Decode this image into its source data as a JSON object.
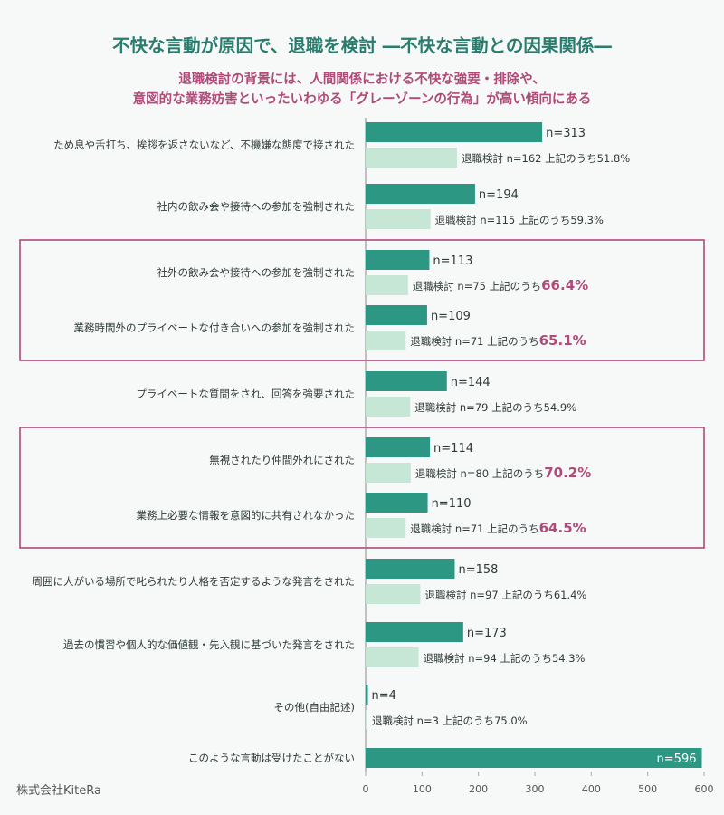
{
  "title": "不快な言動が原因で、退職を検討 ―不快な言動との因果関係―",
  "subtitle_lines": [
    "退職検討の背景には、人間関係における不快な強要・排除や、",
    "意図的な業務妨害といったいわゆる「グレーゾーンの行為」が高い傾向にある"
  ],
  "company": "株式会社KiteRa",
  "colors": {
    "primary": "#2c9783",
    "secondary": "#c6e6d6",
    "highlight": "#b04a78",
    "title": "#2a7d6e"
  },
  "chart_data": {
    "type": "bar",
    "orientation": "horizontal",
    "xlim": [
      0,
      600
    ],
    "xticks": [
      0,
      100,
      200,
      300,
      400,
      500,
      600
    ],
    "categories": [
      {
        "label": "ため息や舌打ち、挨拶を返さないなど、不機嫌な態度で接された",
        "n": 313,
        "n_label": "n=313",
        "retire": 162,
        "retire_label": "退職検討 n=162 上記のうち",
        "pct": "51.8%",
        "highlight": false
      },
      {
        "label": "社内の飲み会や接待への参加を強制された",
        "n": 194,
        "n_label": "n=194",
        "retire": 115,
        "retire_label": "退職検討 n=115 上記のうち",
        "pct": "59.3%",
        "highlight": false
      },
      {
        "label": "社外の飲み会や接待への参加を強制された",
        "n": 113,
        "n_label": "n=113",
        "retire": 75,
        "retire_label": "退職検討 n=75 上記のうち",
        "pct": "66.4%",
        "highlight": true
      },
      {
        "label": "業務時間外のプライベートな付き合いへの参加を強制された",
        "n": 109,
        "n_label": "n=109",
        "retire": 71,
        "retire_label": "退職検討 n=71 上記のうち",
        "pct": "65.1%",
        "highlight": true
      },
      {
        "label": "プライベートな質問をされ、回答を強要された",
        "n": 144,
        "n_label": "n=144",
        "retire": 79,
        "retire_label": "退職検討 n=79 上記のうち",
        "pct": "54.9%",
        "highlight": false
      },
      {
        "label": "無視されたり仲間外れにされた",
        "n": 114,
        "n_label": "n=114",
        "retire": 80,
        "retire_label": "退職検討 n=80 上記のうち",
        "pct": "70.2%",
        "highlight": true
      },
      {
        "label": "業務上必要な情報を意図的に共有されなかった",
        "n": 110,
        "n_label": "n=110",
        "retire": 71,
        "retire_label": "退職検討 n=71 上記のうち",
        "pct": "64.5%",
        "highlight": true
      },
      {
        "label": "周囲に人がいる場所で叱られたり人格を否定するような発言をされた",
        "n": 158,
        "n_label": "n=158",
        "retire": 97,
        "retire_label": "退職検討 n=97 上記のうち",
        "pct": "61.4%",
        "highlight": false
      },
      {
        "label": "過去の慣習や個人的な価値観・先入観に基づいた発言をされた",
        "n": 173,
        "n_label": "n=173",
        "retire": 94,
        "retire_label": "退職検討 n=94 上記のうち",
        "pct": "54.3%",
        "highlight": false
      },
      {
        "label": "その他(自由記述)",
        "n": 4,
        "n_label": "n=4",
        "retire": 3,
        "retire_label": "退職検討 n=3 上記のうち",
        "pct": "75.0%",
        "highlight": false
      },
      {
        "label": "このような言動は受けたことがない",
        "n": 596,
        "n_label": "n=596",
        "retire": null,
        "retire_label": null,
        "pct": null,
        "highlight": false
      }
    ],
    "highlight_groups": [
      [
        2,
        3
      ],
      [
        5,
        6
      ]
    ]
  }
}
